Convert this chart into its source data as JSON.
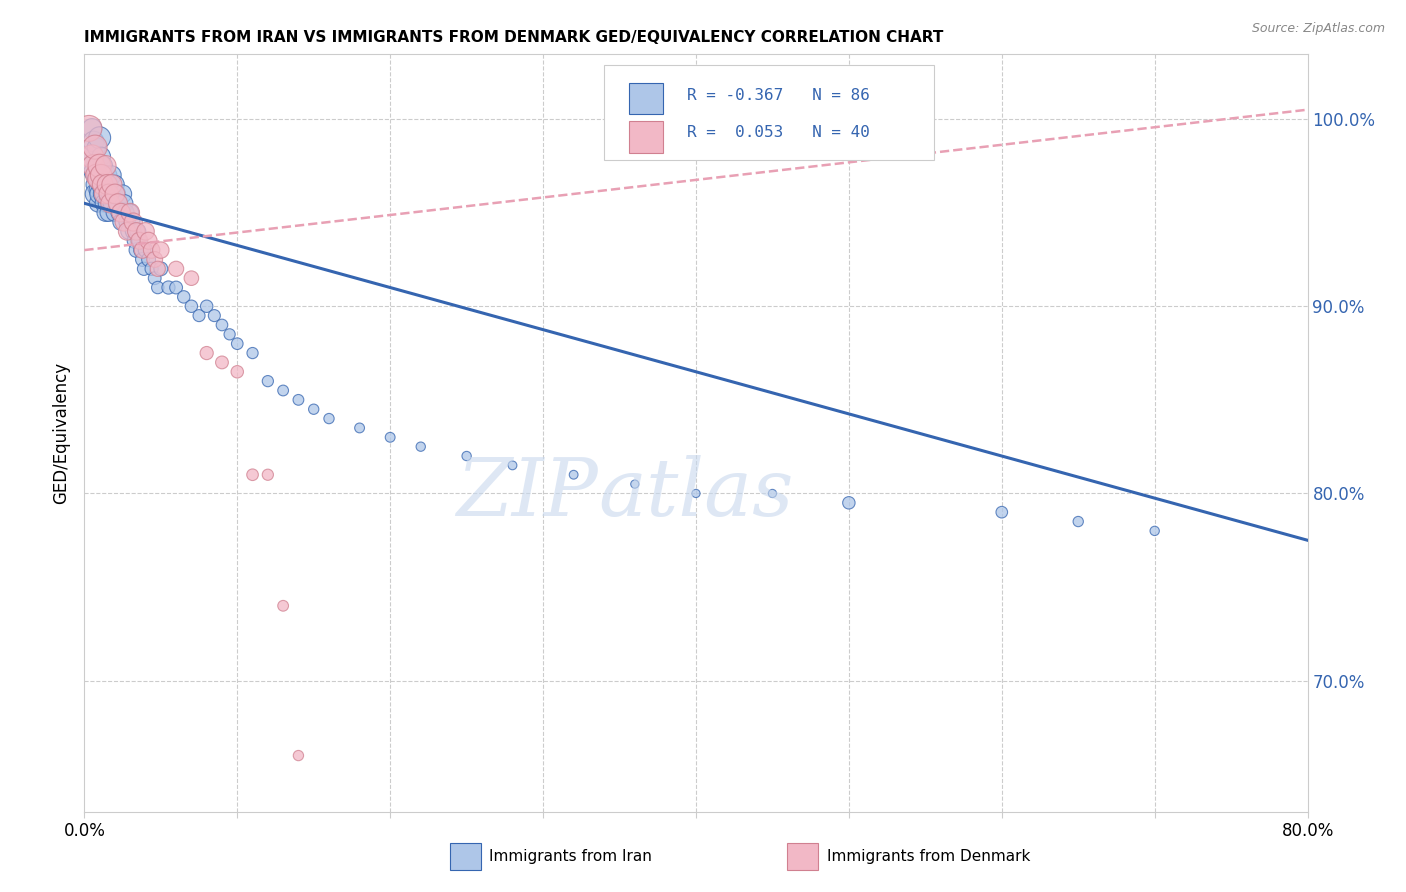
{
  "title": "IMMIGRANTS FROM IRAN VS IMMIGRANTS FROM DENMARK GED/EQUIVALENCY CORRELATION CHART",
  "source": "Source: ZipAtlas.com",
  "ylabel": "GED/Equivalency",
  "xlim": [
    0.0,
    0.8
  ],
  "ylim": [
    0.63,
    1.035
  ],
  "iran_R": -0.367,
  "iran_N": 86,
  "denmark_R": 0.053,
  "denmark_N": 40,
  "iran_color": "#aec6e8",
  "denmark_color": "#f2b8c6",
  "iran_line_color": "#3565b0",
  "denmark_line_color": "#e8a0b4",
  "legend_text_color": "#3565b0",
  "watermark_color": "#c8d8ee",
  "iran_line_x0": 0.0,
  "iran_line_y0": 0.955,
  "iran_line_x1": 0.8,
  "iran_line_y1": 0.775,
  "denmark_line_x0": 0.0,
  "denmark_line_y0": 0.93,
  "denmark_line_x1": 0.8,
  "denmark_line_y1": 1.005,
  "iran_points_x": [
    0.003,
    0.004,
    0.005,
    0.006,
    0.006,
    0.007,
    0.007,
    0.008,
    0.008,
    0.009,
    0.009,
    0.01,
    0.01,
    0.01,
    0.011,
    0.011,
    0.012,
    0.012,
    0.013,
    0.013,
    0.014,
    0.014,
    0.015,
    0.015,
    0.016,
    0.016,
    0.017,
    0.018,
    0.018,
    0.019,
    0.02,
    0.02,
    0.021,
    0.022,
    0.023,
    0.024,
    0.025,
    0.026,
    0.027,
    0.028,
    0.029,
    0.03,
    0.031,
    0.032,
    0.033,
    0.034,
    0.035,
    0.036,
    0.037,
    0.038,
    0.039,
    0.04,
    0.042,
    0.044,
    0.046,
    0.048,
    0.05,
    0.055,
    0.06,
    0.065,
    0.07,
    0.075,
    0.08,
    0.085,
    0.09,
    0.095,
    0.1,
    0.11,
    0.12,
    0.13,
    0.14,
    0.15,
    0.16,
    0.18,
    0.2,
    0.22,
    0.25,
    0.28,
    0.32,
    0.36,
    0.4,
    0.45,
    0.5,
    0.6,
    0.65,
    0.7
  ],
  "iran_points_y": [
    0.98,
    0.975,
    0.995,
    0.988,
    0.972,
    0.965,
    0.96,
    0.985,
    0.97,
    0.962,
    0.955,
    0.99,
    0.975,
    0.96,
    0.98,
    0.965,
    0.975,
    0.96,
    0.97,
    0.955,
    0.965,
    0.95,
    0.97,
    0.955,
    0.965,
    0.95,
    0.96,
    0.97,
    0.955,
    0.96,
    0.965,
    0.95,
    0.96,
    0.955,
    0.95,
    0.945,
    0.96,
    0.955,
    0.95,
    0.945,
    0.94,
    0.95,
    0.945,
    0.94,
    0.935,
    0.93,
    0.94,
    0.935,
    0.93,
    0.925,
    0.92,
    0.93,
    0.925,
    0.92,
    0.915,
    0.91,
    0.92,
    0.91,
    0.91,
    0.905,
    0.9,
    0.895,
    0.9,
    0.895,
    0.89,
    0.885,
    0.88,
    0.875,
    0.86,
    0.855,
    0.85,
    0.845,
    0.84,
    0.835,
    0.83,
    0.825,
    0.82,
    0.815,
    0.81,
    0.805,
    0.8,
    0.8,
    0.795,
    0.79,
    0.785,
    0.78
  ],
  "iran_sizes": [
    180,
    160,
    200,
    220,
    190,
    170,
    200,
    180,
    190,
    170,
    160,
    250,
    220,
    200,
    180,
    190,
    200,
    180,
    190,
    170,
    180,
    160,
    190,
    170,
    180,
    160,
    170,
    180,
    160,
    170,
    180,
    160,
    170,
    160,
    150,
    140,
    170,
    160,
    150,
    140,
    130,
    150,
    140,
    130,
    120,
    110,
    130,
    120,
    110,
    100,
    90,
    110,
    100,
    90,
    85,
    80,
    100,
    90,
    85,
    80,
    80,
    75,
    80,
    75,
    70,
    65,
    70,
    65,
    65,
    60,
    60,
    55,
    55,
    50,
    50,
    45,
    45,
    40,
    40,
    35,
    35,
    35,
    80,
    70,
    55,
    45
  ],
  "denmark_points_x": [
    0.003,
    0.005,
    0.006,
    0.007,
    0.008,
    0.009,
    0.01,
    0.011,
    0.012,
    0.013,
    0.014,
    0.015,
    0.016,
    0.017,
    0.018,
    0.02,
    0.022,
    0.024,
    0.026,
    0.028,
    0.03,
    0.032,
    0.034,
    0.036,
    0.038,
    0.04,
    0.042,
    0.044,
    0.046,
    0.048,
    0.05,
    0.06,
    0.07,
    0.08,
    0.09,
    0.1,
    0.11,
    0.12,
    0.13,
    0.14
  ],
  "denmark_points_y": [
    0.995,
    0.98,
    0.975,
    0.985,
    0.97,
    0.968,
    0.975,
    0.97,
    0.965,
    0.96,
    0.975,
    0.965,
    0.96,
    0.955,
    0.965,
    0.96,
    0.955,
    0.95,
    0.945,
    0.94,
    0.95,
    0.945,
    0.94,
    0.935,
    0.93,
    0.94,
    0.935,
    0.93,
    0.925,
    0.92,
    0.93,
    0.92,
    0.915,
    0.875,
    0.87,
    0.865,
    0.81,
    0.81,
    0.74,
    0.66
  ],
  "denmark_sizes": [
    350,
    280,
    260,
    300,
    250,
    220,
    280,
    240,
    220,
    200,
    220,
    210,
    200,
    190,
    210,
    200,
    190,
    180,
    170,
    160,
    180,
    170,
    160,
    150,
    140,
    160,
    150,
    140,
    130,
    120,
    140,
    120,
    110,
    90,
    85,
    80,
    70,
    65,
    60,
    55
  ]
}
